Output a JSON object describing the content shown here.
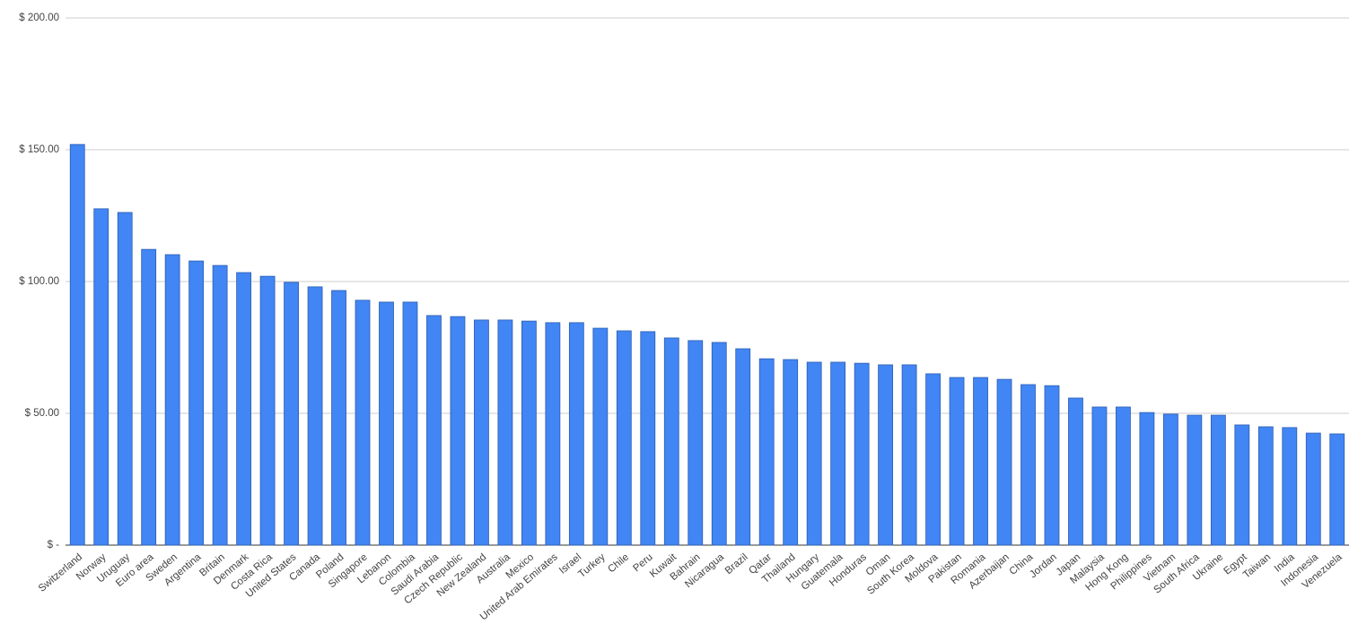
{
  "chart_data": {
    "type": "bar",
    "categories": [
      "Switzerland",
      "Norway",
      "Uruguay",
      "Euro area",
      "Sweden",
      "Argentina",
      "Britain",
      "Denmark",
      "Costa Rica",
      "United States",
      "Canada",
      "Poland",
      "Singapore",
      "Lebanon",
      "Colombia",
      "Saudi Arabia",
      "Czech Republic",
      "New Zealand",
      "Australia",
      "Mexico",
      "United Arab Emirates",
      "Israel",
      "Turkey",
      "Chile",
      "Peru",
      "Kuwait",
      "Bahrain",
      "Nicaragua",
      "Brazil",
      "Qatar",
      "Thailand",
      "Hungary",
      "Guatemala",
      "Honduras",
      "Oman",
      "South Korea",
      "Moldova",
      "Pakistan",
      "Romania",
      "Azerbaijan",
      "China",
      "Jordan",
      "Japan",
      "Malaysia",
      "Hong Kong",
      "Philippines",
      "Vietnam",
      "South Africa",
      "Ukraine",
      "Egypt",
      "Taiwan",
      "India",
      "Indonesia",
      "Venezuela"
    ],
    "values": [
      152.0,
      127.6,
      126.2,
      112.2,
      110.2,
      107.8,
      106.1,
      103.4,
      102.0,
      99.7,
      98.0,
      96.6,
      92.9,
      92.2,
      92.2,
      87.1,
      86.7,
      85.4,
      85.4,
      85.0,
      84.4,
      84.4,
      82.3,
      81.3,
      81.0,
      78.6,
      77.6,
      76.9,
      74.5,
      70.7,
      70.4,
      69.4,
      69.4,
      69.0,
      68.4,
      68.4,
      65.0,
      63.6,
      63.6,
      62.9,
      60.9,
      60.5,
      55.8,
      52.4,
      52.4,
      50.3,
      49.7,
      49.3,
      49.3,
      45.6,
      44.9,
      44.6,
      42.5,
      42.2
    ],
    "color": "#4285f4",
    "ylim": [
      0,
      200
    ],
    "yticks": [
      {
        "value": 0,
        "label": "$ -"
      },
      {
        "value": 50,
        "label": "$ 50.00"
      },
      {
        "value": 100,
        "label": "$ 100.00"
      },
      {
        "value": 150,
        "label": "$ 150.00"
      },
      {
        "value": 200,
        "label": "$ 200.00"
      }
    ],
    "grid": true
  }
}
